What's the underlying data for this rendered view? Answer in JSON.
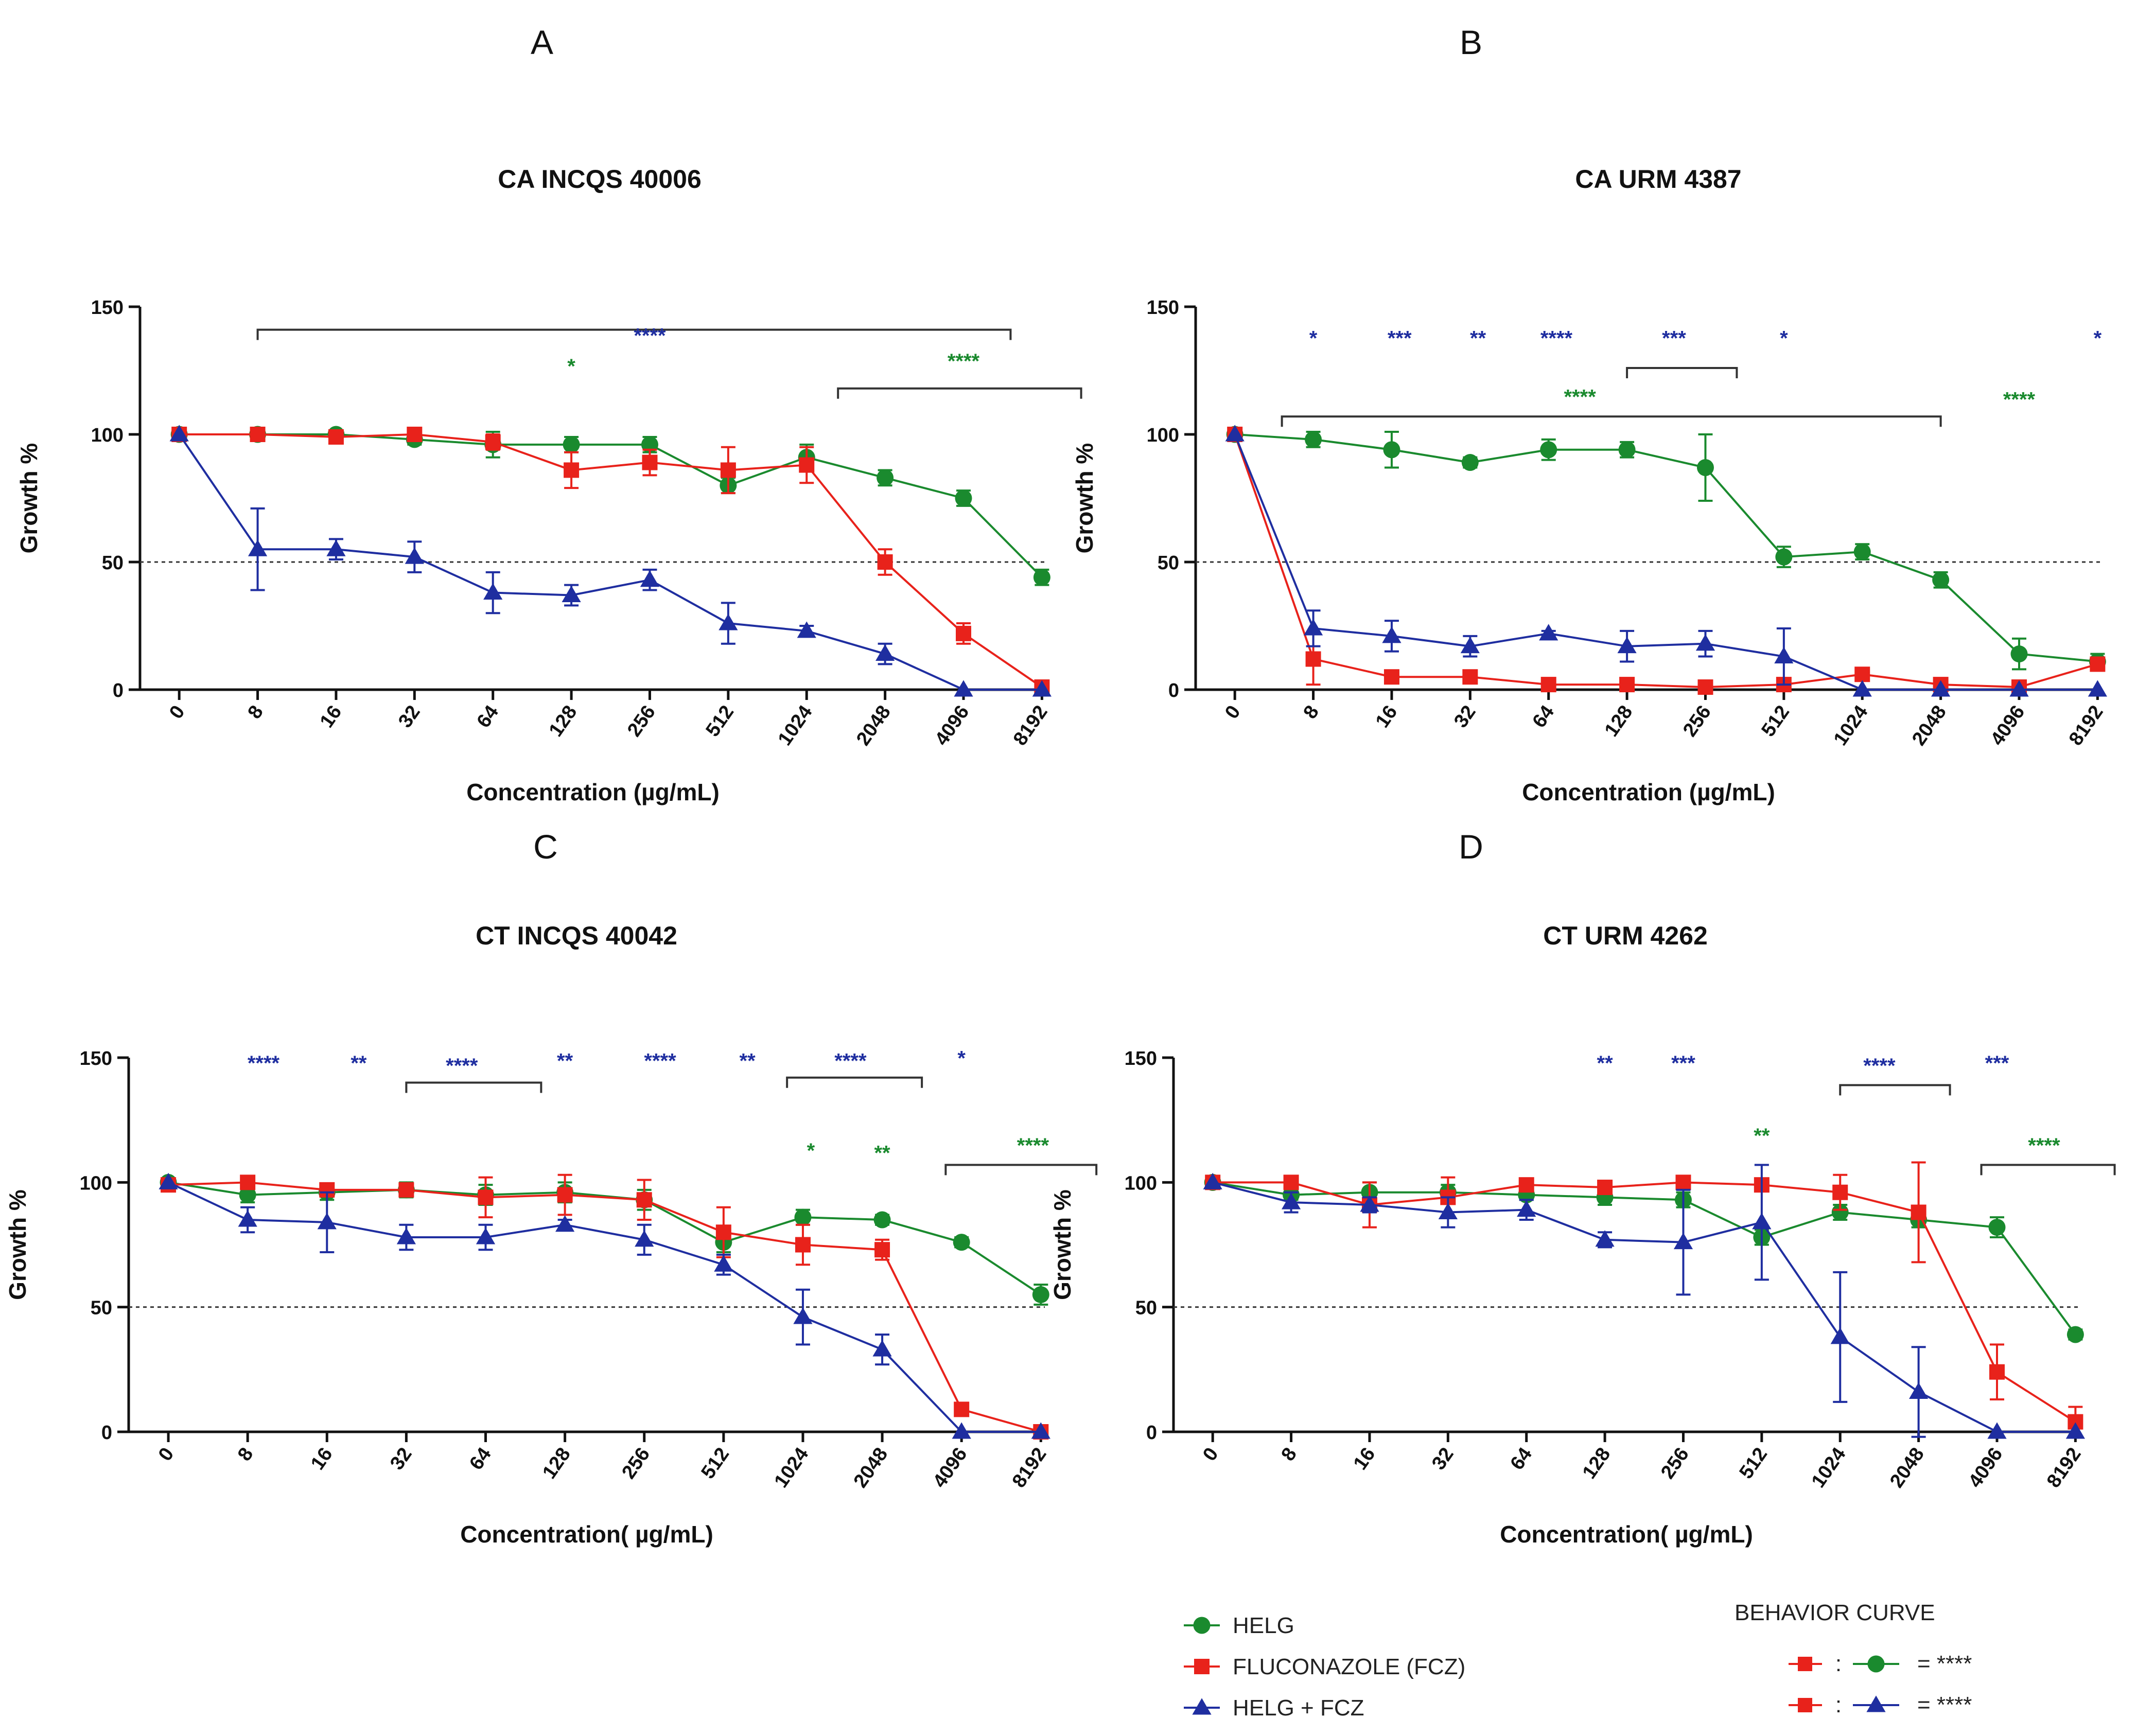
{
  "colors": {
    "helg": "#1a8a2e",
    "fcz": "#e8221b",
    "combo": "#1f2ea0",
    "axis": "#111111",
    "bracket": "#333333"
  },
  "chart_data": [
    {
      "type": "line",
      "letter": "A",
      "title": "CA INCQS 40006",
      "xlabel": "Concentration (µg/mL)",
      "ylabel": "Growth %",
      "categories": [
        "0",
        "8",
        "16",
        "32",
        "64",
        "128",
        "256",
        "512",
        "1024",
        "2048",
        "4096",
        "8192"
      ],
      "ylim": [
        0,
        150
      ],
      "yticks": [
        "0",
        "50",
        "100",
        "150"
      ],
      "threshold": 50,
      "series": [
        {
          "name": "HELG",
          "key": "helg",
          "marker": "circle",
          "values": [
            100,
            100,
            100,
            98,
            96,
            96,
            96,
            80,
            91,
            83,
            75,
            44
          ],
          "err": [
            0,
            1,
            1,
            2,
            5,
            3,
            3,
            3,
            5,
            3,
            3,
            3
          ]
        },
        {
          "name": "FLUCONAZOLE (FCZ)",
          "key": "fcz",
          "marker": "square",
          "values": [
            100,
            100,
            99,
            100,
            97,
            86,
            89,
            86,
            88,
            50,
            22,
            1
          ],
          "err": [
            0,
            1,
            1,
            1,
            3,
            7,
            5,
            9,
            7,
            5,
            4,
            0
          ]
        },
        {
          "name": "HELG + FCZ",
          "key": "combo",
          "marker": "triangle",
          "values": [
            100,
            55,
            55,
            52,
            38,
            37,
            43,
            26,
            23,
            14,
            0,
            0
          ],
          "err": [
            0,
            16,
            4,
            6,
            8,
            4,
            4,
            8,
            2,
            4,
            0,
            0
          ]
        }
      ],
      "annotations": [
        {
          "text": "****",
          "key": "combo",
          "x": 6.0,
          "y": 136
        },
        {
          "text": "*",
          "key": "helg",
          "x": 5.0,
          "y": 124
        },
        {
          "text": "****",
          "key": "helg",
          "x": 10.0,
          "y": 126
        }
      ],
      "brackets": [
        {
          "from": 1,
          "to": 10.6,
          "y": 141
        },
        {
          "from": 8.4,
          "to": 11.5,
          "y": 118
        }
      ]
    },
    {
      "type": "line",
      "letter": "B",
      "title": "CA URM 4387",
      "xlabel": "Concentration (µg/mL)",
      "ylabel": "Growth %",
      "categories": [
        "0",
        "8",
        "16",
        "32",
        "64",
        "128",
        "256",
        "512",
        "1024",
        "2048",
        "4096",
        "8192"
      ],
      "ylim": [
        0,
        150
      ],
      "yticks": [
        "0",
        "50",
        "100",
        "150"
      ],
      "threshold": 50,
      "series": [
        {
          "name": "HELG",
          "key": "helg",
          "marker": "circle",
          "values": [
            100,
            98,
            94,
            89,
            94,
            94,
            87,
            52,
            54,
            43,
            14,
            11
          ],
          "err": [
            0,
            3,
            7,
            2,
            4,
            3,
            13,
            4,
            3,
            3,
            6,
            3
          ]
        },
        {
          "name": "FLUCONAZOLE (FCZ)",
          "key": "fcz",
          "marker": "square",
          "values": [
            100,
            12,
            5,
            5,
            2,
            2,
            1,
            2,
            6,
            2,
            1,
            10
          ],
          "err": [
            0,
            10,
            0,
            0,
            0,
            0,
            0,
            0,
            0,
            0,
            0,
            0
          ]
        },
        {
          "name": "HELG + FCZ",
          "key": "combo",
          "marker": "triangle",
          "values": [
            100,
            24,
            21,
            17,
            22,
            17,
            18,
            13,
            0,
            0,
            0,
            0
          ],
          "err": [
            0,
            7,
            6,
            4,
            1,
            6,
            5,
            11,
            0,
            0,
            0,
            0
          ]
        }
      ],
      "annotations": [
        {
          "text": "*",
          "key": "combo",
          "x": 1,
          "y": 135
        },
        {
          "text": "***",
          "key": "combo",
          "x": 2.1,
          "y": 135
        },
        {
          "text": "**",
          "key": "combo",
          "x": 3.1,
          "y": 135
        },
        {
          "text": "****",
          "key": "combo",
          "x": 4.1,
          "y": 135
        },
        {
          "text": "***",
          "key": "combo",
          "x": 5.6,
          "y": 135
        },
        {
          "text": "*",
          "key": "combo",
          "x": 7,
          "y": 135
        },
        {
          "text": "*",
          "key": "combo",
          "x": 11,
          "y": 135
        },
        {
          "text": "****",
          "key": "helg",
          "x": 4.4,
          "y": 112
        },
        {
          "text": "****",
          "key": "helg",
          "x": 10,
          "y": 111
        }
      ],
      "brackets": [
        {
          "from": 5,
          "to": 6.4,
          "y": 126
        },
        {
          "from": 0.6,
          "to": 9.0,
          "y": 107
        }
      ]
    },
    {
      "type": "line",
      "letter": "C",
      "title": "CT INCQS 40042",
      "xlabel": "Concentration( µg/mL)",
      "ylabel": "Growth %",
      "categories": [
        "0",
        "8",
        "16",
        "32",
        "64",
        "128",
        "256",
        "512",
        "1024",
        "2048",
        "4096",
        "8192"
      ],
      "ylim": [
        0,
        150
      ],
      "yticks": [
        "0",
        "50",
        "100",
        "150"
      ],
      "threshold": 50,
      "series": [
        {
          "name": "HELG",
          "key": "helg",
          "marker": "circle",
          "values": [
            100,
            95,
            96,
            97,
            95,
            96,
            93,
            76,
            86,
            85,
            76,
            55
          ],
          "err": [
            0,
            3,
            3,
            3,
            4,
            4,
            4,
            4,
            3,
            2,
            2,
            4
          ]
        },
        {
          "name": "FLUCONAZOLE (FCZ)",
          "key": "fcz",
          "marker": "square",
          "values": [
            99,
            100,
            97,
            97,
            94,
            95,
            93,
            80,
            75,
            73,
            9,
            0
          ],
          "err": [
            0,
            0,
            2,
            1,
            8,
            8,
            8,
            10,
            8,
            4,
            0,
            0
          ]
        },
        {
          "name": "HELG + FCZ",
          "key": "combo",
          "marker": "triangle",
          "values": [
            100,
            85,
            84,
            78,
            78,
            83,
            77,
            67,
            46,
            33,
            0,
            0
          ],
          "err": [
            0,
            5,
            12,
            5,
            5,
            2,
            6,
            4,
            11,
            6,
            0,
            0
          ]
        }
      ],
      "annotations": [
        {
          "text": "****",
          "key": "combo",
          "x": 1.2,
          "y": 145
        },
        {
          "text": "**",
          "key": "combo",
          "x": 2.4,
          "y": 145
        },
        {
          "text": "****",
          "key": "combo",
          "x": 3.7,
          "y": 144
        },
        {
          "text": "**",
          "key": "combo",
          "x": 5,
          "y": 146
        },
        {
          "text": "****",
          "key": "combo",
          "x": 6.2,
          "y": 146
        },
        {
          "text": "**",
          "key": "combo",
          "x": 7.3,
          "y": 146
        },
        {
          "text": "****",
          "key": "combo",
          "x": 8.6,
          "y": 146
        },
        {
          "text": "*",
          "key": "combo",
          "x": 10,
          "y": 147
        },
        {
          "text": "*",
          "key": "helg",
          "x": 8.1,
          "y": 110
        },
        {
          "text": "**",
          "key": "helg",
          "x": 9.0,
          "y": 109
        },
        {
          "text": "****",
          "key": "helg",
          "x": 10.9,
          "y": 112
        }
      ],
      "brackets": [
        {
          "from": 3,
          "to": 4.7,
          "y": 140
        },
        {
          "from": 7.8,
          "to": 9.5,
          "y": 142
        },
        {
          "from": 9.8,
          "to": 11.7,
          "y": 107
        }
      ]
    },
    {
      "type": "line",
      "letter": "D",
      "title": "CT URM 4262",
      "xlabel": "Concentration( µg/mL)",
      "ylabel": "Growth %",
      "categories": [
        "0",
        "8",
        "16",
        "32",
        "64",
        "128",
        "256",
        "512",
        "1024",
        "2048",
        "4096",
        "8192"
      ],
      "ylim": [
        0,
        150
      ],
      "yticks": [
        "0",
        "50",
        "100",
        "150"
      ],
      "threshold": 50,
      "series": [
        {
          "name": "HELG",
          "key": "helg",
          "marker": "circle",
          "values": [
            100,
            95,
            96,
            96,
            95,
            94,
            93,
            78,
            88,
            85,
            82,
            39
          ],
          "err": [
            0,
            2,
            4,
            3,
            2,
            3,
            3,
            3,
            3,
            3,
            4,
            2
          ]
        },
        {
          "name": "FLUCONAZOLE (FCZ)",
          "key": "fcz",
          "marker": "square",
          "values": [
            100,
            100,
            91,
            94,
            99,
            98,
            100,
            99,
            96,
            88,
            24,
            4
          ],
          "err": [
            0,
            0,
            9,
            8,
            1,
            1,
            1,
            1,
            7,
            20,
            11,
            6
          ]
        },
        {
          "name": "HELG + FCZ",
          "key": "combo",
          "marker": "triangle",
          "values": [
            100,
            92,
            91,
            88,
            89,
            77,
            76,
            84,
            38,
            16,
            0,
            0
          ],
          "err": [
            0,
            4,
            3,
            6,
            4,
            3,
            21,
            23,
            26,
            18,
            0,
            0
          ]
        }
      ],
      "annotations": [
        {
          "text": "**",
          "key": "combo",
          "x": 5,
          "y": 145
        },
        {
          "text": "***",
          "key": "combo",
          "x": 6,
          "y": 145
        },
        {
          "text": "****",
          "key": "combo",
          "x": 8.5,
          "y": 144
        },
        {
          "text": "***",
          "key": "combo",
          "x": 10,
          "y": 145
        },
        {
          "text": "**",
          "key": "helg",
          "x": 7,
          "y": 116
        },
        {
          "text": "****",
          "key": "helg",
          "x": 10.6,
          "y": 112
        }
      ],
      "brackets": [
        {
          "from": 8,
          "to": 9.4,
          "y": 139
        },
        {
          "from": 9.8,
          "to": 11.5,
          "y": 107
        }
      ]
    }
  ],
  "legend": {
    "items": [
      {
        "label": "HELG",
        "key": "helg",
        "marker": "circle"
      },
      {
        "label": "FLUCONAZOLE (FCZ)",
        "key": "fcz",
        "marker": "square"
      },
      {
        "label": "HELG + FCZ",
        "key": "combo",
        "marker": "triangle"
      }
    ]
  },
  "behavior_curve": {
    "title": "BEHAVIOR CURVE",
    "rows": [
      {
        "a": "fcz",
        "b": "helg",
        "b_marker": "circle",
        "separator": ":",
        "result": "= ****"
      },
      {
        "a": "fcz",
        "b": "combo",
        "b_marker": "triangle",
        "separator": ":",
        "result": "= ****"
      }
    ]
  }
}
